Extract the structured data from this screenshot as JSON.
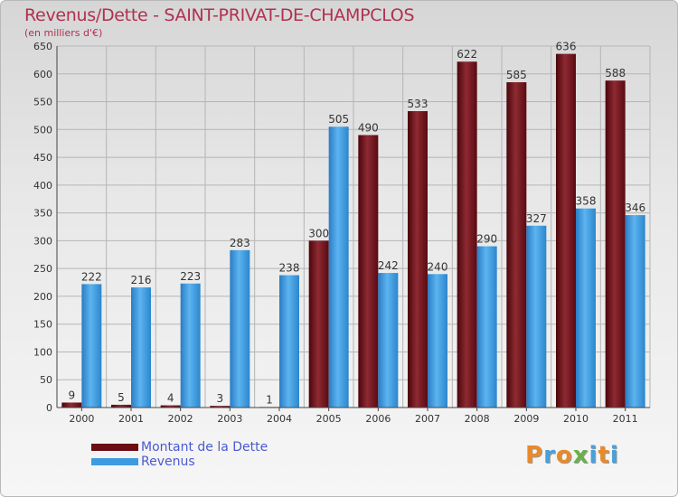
{
  "header": {
    "title": "Revenus/Dette - SAINT-PRIVAT-DE-CHAMPCLOS",
    "subtitle": "(en milliers d'€)"
  },
  "chart_data": {
    "type": "bar",
    "categories": [
      "2000",
      "2001",
      "2002",
      "2003",
      "2004",
      "2005",
      "2006",
      "2007",
      "2008",
      "2009",
      "2010",
      "2011"
    ],
    "series": [
      {
        "name": "Montant de la Dette",
        "color": "#7a1a22",
        "values": [
          9,
          5,
          4,
          3,
          1,
          300,
          490,
          533,
          622,
          585,
          636,
          588
        ]
      },
      {
        "name": "Revenus",
        "color": "#3d9be0",
        "values": [
          222,
          216,
          223,
          283,
          238,
          505,
          242,
          240,
          290,
          327,
          358,
          346
        ]
      }
    ],
    "ylim": [
      0,
      650
    ],
    "yticks": [
      0,
      50,
      100,
      150,
      200,
      250,
      300,
      350,
      400,
      450,
      500,
      550,
      600,
      650
    ],
    "grid": true,
    "legend": "bottom-left"
  },
  "legend": {
    "items": [
      {
        "label": "Montant de la Dette",
        "color": "#6a0d15"
      },
      {
        "label": "Revenus",
        "color": "#3d9be0"
      }
    ]
  },
  "logo": {
    "text": "Proxiti",
    "colors": [
      "#e88a2a",
      "#4aa0d8",
      "#e88a2a",
      "#6ab04a",
      "#4aa0d8",
      "#e88a2a",
      "#4aa0d8"
    ]
  }
}
